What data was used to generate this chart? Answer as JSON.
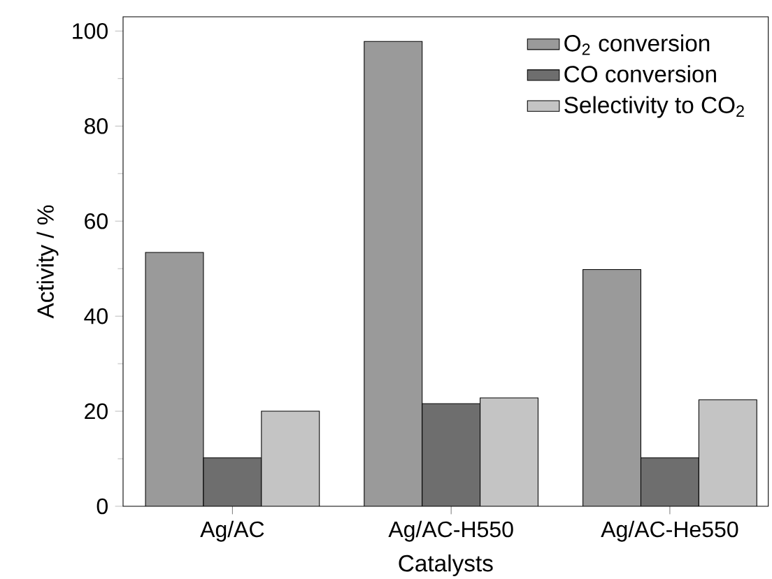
{
  "chart_data": {
    "type": "bar",
    "xlabel": "Catalysts",
    "ylabel": "Activity / %",
    "categories": [
      "Ag/AC",
      "Ag/AC-H550",
      "Ag/AC-He550"
    ],
    "series": [
      {
        "name": "O$_{2}$ conversion",
        "color": "#9a9a9a",
        "values": [
          53.4,
          97.8,
          49.8
        ]
      },
      {
        "name": "CO conversion",
        "color": "#6e6e6e",
        "values": [
          10.2,
          21.6,
          10.2
        ]
      },
      {
        "name": "Selectivity to CO$_{2}$",
        "color": "#c4c4c4",
        "values": [
          20.0,
          22.8,
          22.4
        ]
      }
    ],
    "ylim": [
      0,
      103
    ],
    "yticks": [
      0,
      20,
      40,
      60,
      80,
      100
    ],
    "legend": "top right",
    "grid": false
  }
}
